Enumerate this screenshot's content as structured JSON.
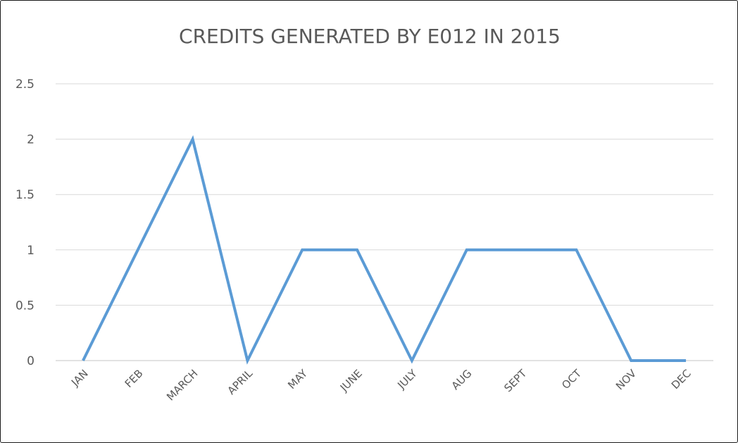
{
  "chart_data": {
    "type": "line",
    "title": "CREDITS GENERATED BY E012 IN 2015",
    "xlabel": "",
    "ylabel": "",
    "categories": [
      "JAN",
      "FEB",
      "MARCH",
      "APRIL",
      "MAY",
      "JUNE",
      "JULY",
      "AUG",
      "SEPT",
      "OCT",
      "NOV",
      "DEC"
    ],
    "series": [
      {
        "values": [
          0,
          1,
          2,
          0,
          1,
          1,
          0,
          1,
          1,
          1,
          0,
          0
        ],
        "color": "#5b9bd5"
      }
    ],
    "ylim": [
      0,
      2.5
    ],
    "yticks": [
      "0",
      "0.5",
      "1",
      "1.5",
      "2",
      "2.5"
    ],
    "grid": true,
    "legend": "none",
    "gridline_color": "#d9d9d9",
    "axis_color": "#d9d9d9",
    "text_color": "#595959"
  }
}
